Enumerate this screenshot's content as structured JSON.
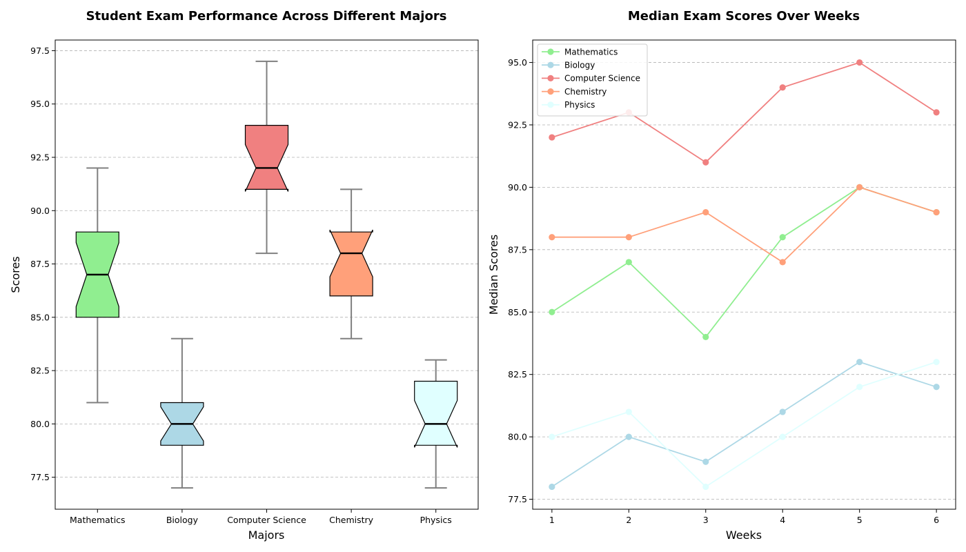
{
  "chart_data": [
    {
      "type": "boxplot",
      "title": "Student Exam Performance Across Different Majors",
      "xlabel": "Majors",
      "ylabel": "Scores",
      "ylim": [
        76,
        98
      ],
      "yticks": [
        77.5,
        80.0,
        82.5,
        85.0,
        87.5,
        90.0,
        92.5,
        95.0,
        97.5
      ],
      "grid": "y-dashed",
      "notched": true,
      "categories": [
        "Mathematics",
        "Biology",
        "Computer Science",
        "Chemistry",
        "Physics"
      ],
      "boxes": [
        {
          "name": "Mathematics",
          "whisker_low": 81,
          "q1": 85,
          "median": 87,
          "q3": 89,
          "whisker_high": 92,
          "notch_low": 85.5,
          "notch_high": 88.5,
          "color": "#90ee90"
        },
        {
          "name": "Biology",
          "whisker_low": 77,
          "q1": 79,
          "median": 80,
          "q3": 81,
          "whisker_high": 84,
          "notch_low": 79.2,
          "notch_high": 80.8,
          "color": "#add8e6"
        },
        {
          "name": "Computer Science",
          "whisker_low": 88,
          "q1": 91,
          "median": 92,
          "q3": 94,
          "whisker_high": 97,
          "notch_low": 90.9,
          "notch_high": 93.1,
          "color": "#f08080"
        },
        {
          "name": "Chemistry",
          "whisker_low": 84,
          "q1": 86,
          "median": 88,
          "q3": 89,
          "whisker_high": 91,
          "notch_low": 86.9,
          "notch_high": 89.1,
          "color": "#ffa07a"
        },
        {
          "name": "Physics",
          "whisker_low": 77,
          "q1": 79,
          "median": 80,
          "q3": 82,
          "whisker_high": 83,
          "notch_low": 78.9,
          "notch_high": 81.1,
          "color": "#e0ffff"
        }
      ]
    },
    {
      "type": "line",
      "title": "Median Exam Scores Over Weeks",
      "xlabel": "Weeks",
      "ylabel": "Median Scores",
      "x": [
        1,
        2,
        3,
        4,
        5,
        6
      ],
      "xlim": [
        0.75,
        6.25
      ],
      "ylim": [
        77.1,
        95.9
      ],
      "yticks": [
        77.5,
        80.0,
        82.5,
        85.0,
        87.5,
        90.0,
        92.5,
        95.0
      ],
      "grid": "y-dashed",
      "legend_position": "top-left",
      "series": [
        {
          "name": "Mathematics",
          "values": [
            85,
            87,
            84,
            88,
            90,
            89
          ],
          "color": "#90ee90"
        },
        {
          "name": "Biology",
          "values": [
            78,
            80,
            79,
            81,
            83,
            82
          ],
          "color": "#add8e6"
        },
        {
          "name": "Computer Science",
          "values": [
            92,
            93,
            91,
            94,
            95,
            93
          ],
          "color": "#f08080"
        },
        {
          "name": "Chemistry",
          "values": [
            88,
            88,
            89,
            87,
            90,
            89
          ],
          "color": "#ffa07a"
        },
        {
          "name": "Physics",
          "values": [
            80,
            81,
            78,
            80,
            82,
            83
          ],
          "color": "#e0ffff"
        }
      ]
    }
  ]
}
